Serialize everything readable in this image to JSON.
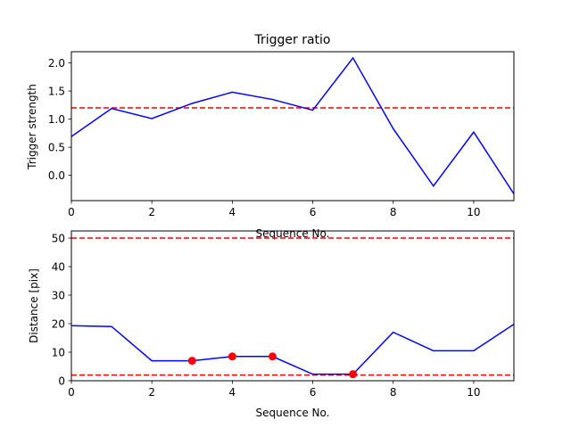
{
  "chart_data": [
    {
      "type": "line",
      "title": "Trigger ratio",
      "xlabel": "Sequence No.",
      "ylabel": "Trigger strength",
      "xlim": [
        0,
        11
      ],
      "ylim": [
        -0.45,
        2.2
      ],
      "xticks": [
        0,
        2,
        4,
        6,
        8,
        10
      ],
      "yticks": [
        0.0,
        0.5,
        1.0,
        1.5,
        2.0
      ],
      "ytick_labels": [
        "0.0",
        "0.5",
        "1.0",
        "1.5",
        "2.0"
      ],
      "grid": false,
      "series": [
        {
          "color": "#0000ff",
          "x": [
            0,
            1,
            2,
            3,
            4,
            5,
            6,
            7,
            8,
            9,
            10,
            11
          ],
          "y": [
            0.69,
            1.19,
            1.01,
            1.28,
            1.48,
            1.35,
            1.16,
            2.09,
            0.83,
            -0.19,
            0.77,
            -0.33
          ]
        }
      ],
      "hlines": [
        {
          "y": 1.2,
          "color": "#ff0000",
          "style": "dashed"
        }
      ],
      "markers": []
    },
    {
      "type": "line",
      "title": "",
      "xlabel": "Sequence No.",
      "ylabel": "Distance [pix]",
      "xlim": [
        0,
        11
      ],
      "ylim": [
        0,
        52.5
      ],
      "xticks": [
        0,
        2,
        4,
        6,
        8,
        10
      ],
      "yticks": [
        0,
        10,
        20,
        30,
        40,
        50
      ],
      "ytick_labels": [
        "0",
        "10",
        "20",
        "30",
        "40",
        "50"
      ],
      "grid": false,
      "series": [
        {
          "color": "#0000ff",
          "x": [
            0,
            1,
            2,
            3,
            4,
            5,
            6,
            7,
            8,
            9,
            10,
            11
          ],
          "y": [
            19.3,
            19.0,
            7.0,
            7.0,
            8.5,
            8.5,
            2.3,
            2.3,
            17.0,
            10.5,
            10.5,
            19.8
          ]
        }
      ],
      "hlines": [
        {
          "y": 50,
          "color": "#ff0000",
          "style": "dashed"
        },
        {
          "y": 2,
          "color": "#ff0000",
          "style": "dashed"
        }
      ],
      "markers": [
        {
          "x": 3,
          "y": 7.0,
          "color": "#ff0000"
        },
        {
          "x": 4,
          "y": 8.5,
          "color": "#ff0000"
        },
        {
          "x": 5,
          "y": 8.5,
          "color": "#ff0000"
        },
        {
          "x": 7,
          "y": 2.3,
          "color": "#ff0000"
        }
      ]
    }
  ]
}
